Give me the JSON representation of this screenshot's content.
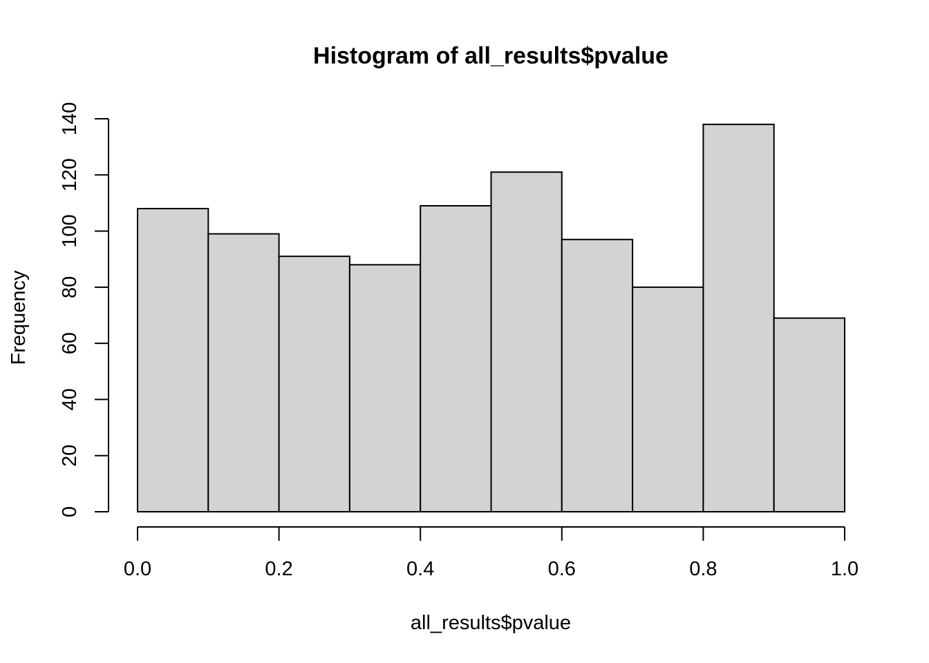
{
  "chart_data": {
    "type": "bar",
    "title": "Histogram of all_results$pvalue",
    "xlabel": "all_results$pvalue",
    "ylabel": "Frequency",
    "bins": [
      {
        "start": 0.0,
        "end": 0.1,
        "count": 108
      },
      {
        "start": 0.1,
        "end": 0.2,
        "count": 99
      },
      {
        "start": 0.2,
        "end": 0.3,
        "count": 91
      },
      {
        "start": 0.3,
        "end": 0.4,
        "count": 88
      },
      {
        "start": 0.4,
        "end": 0.5,
        "count": 109
      },
      {
        "start": 0.5,
        "end": 0.6,
        "count": 121
      },
      {
        "start": 0.6,
        "end": 0.7,
        "count": 97
      },
      {
        "start": 0.7,
        "end": 0.8,
        "count": 80
      },
      {
        "start": 0.8,
        "end": 0.9,
        "count": 138
      },
      {
        "start": 0.9,
        "end": 1.0,
        "count": 69
      }
    ],
    "x_ticks": [
      0.0,
      0.2,
      0.4,
      0.6,
      0.8,
      1.0
    ],
    "x_tick_labels": [
      "0.0",
      "0.2",
      "0.4",
      "0.6",
      "0.8",
      "1.0"
    ],
    "y_ticks": [
      0,
      20,
      40,
      60,
      80,
      100,
      120,
      140
    ],
    "y_tick_labels": [
      "0",
      "20",
      "40",
      "60",
      "80",
      "100",
      "120",
      "140"
    ],
    "xlim": [
      0.0,
      1.0
    ],
    "ylim": [
      0,
      140
    ],
    "grid": false,
    "legend": "none",
    "bar_fill": "#d3d3d3",
    "bar_stroke": "#000000"
  }
}
